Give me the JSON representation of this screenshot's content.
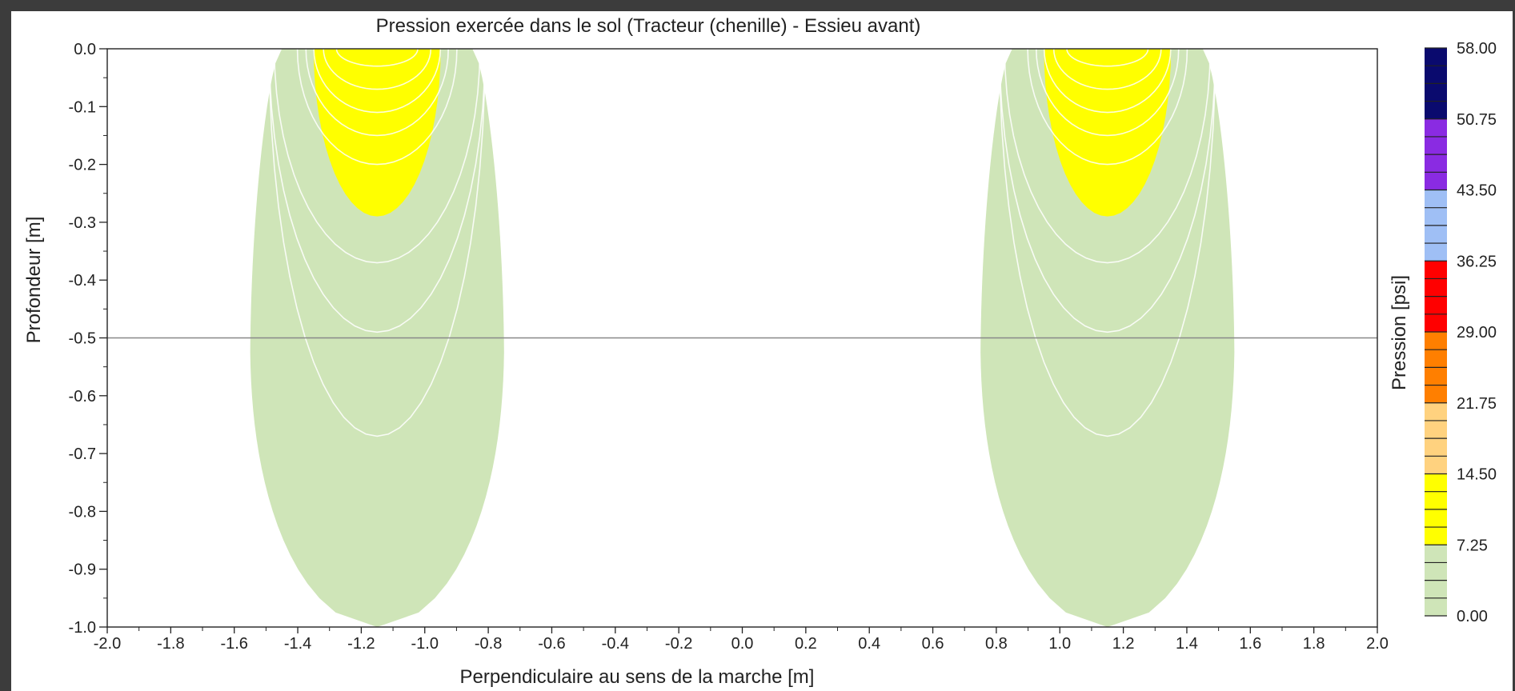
{
  "chart_data": {
    "type": "contour",
    "title": "Pression exercée dans le sol (Tracteur (chenille) - Essieu avant)",
    "xlabel": "Perpendiculaire au sens de la marche [m]",
    "ylabel": "Profondeur [m]",
    "xlim": [
      -2.0,
      2.0
    ],
    "ylim": [
      -1.0,
      0.0
    ],
    "x_ticks": [
      "-2.0",
      "-1.8",
      "-1.6",
      "-1.4",
      "-1.2",
      "-1.0",
      "-0.8",
      "-0.6",
      "-0.4",
      "-0.2",
      "0.0",
      "0.2",
      "0.4",
      "0.6",
      "0.8",
      "1.0",
      "1.2",
      "1.4",
      "1.6",
      "1.8",
      "2.0"
    ],
    "y_ticks": [
      "0.0",
      "-0.1",
      "-0.2",
      "-0.3",
      "-0.4",
      "-0.5",
      "-0.6",
      "-0.7",
      "-0.8",
      "-0.9",
      "-1.0"
    ],
    "reference_line_y": -0.5,
    "sources": [
      {
        "x_center": -1.15,
        "half_width": 0.2
      },
      {
        "x_center": 1.15,
        "half_width": 0.2
      }
    ],
    "regions": [
      {
        "level": "0.00-7.25",
        "color": "#cfe5b8",
        "bottom_depth": -1.0,
        "max_half_width": 0.4
      },
      {
        "level": "7.25-14.50",
        "color": "#ffff00",
        "bottom_depth": -0.29,
        "max_half_width": 0.2
      }
    ],
    "contour_depths": [
      -0.03,
      -0.07,
      -0.11,
      -0.15,
      -0.2,
      -0.37,
      -0.49,
      -0.67
    ],
    "colorbar": {
      "label": "Pression [psi]",
      "ticks": [
        "58.00",
        "50.75",
        "43.50",
        "36.25",
        "29.00",
        "21.75",
        "14.50",
        "7.25",
        "0.00"
      ],
      "min": 0.0,
      "max": 58.0,
      "bands": [
        {
          "from": 0.0,
          "to": 7.25,
          "color": "#cfe5b8"
        },
        {
          "from": 7.25,
          "to": 14.5,
          "color": "#ffff00"
        },
        {
          "from": 14.5,
          "to": 21.75,
          "color": "#ffd27f"
        },
        {
          "from": 21.75,
          "to": 29.0,
          "color": "#ff7f00"
        },
        {
          "from": 29.0,
          "to": 36.25,
          "color": "#ff0000"
        },
        {
          "from": 36.25,
          "to": 43.5,
          "color": "#9fbff5"
        },
        {
          "from": 43.5,
          "to": 50.75,
          "color": "#8a2be2"
        },
        {
          "from": 50.75,
          "to": 58.0,
          "color": "#0a0a6e"
        }
      ],
      "minor_step": 1.8125
    }
  }
}
